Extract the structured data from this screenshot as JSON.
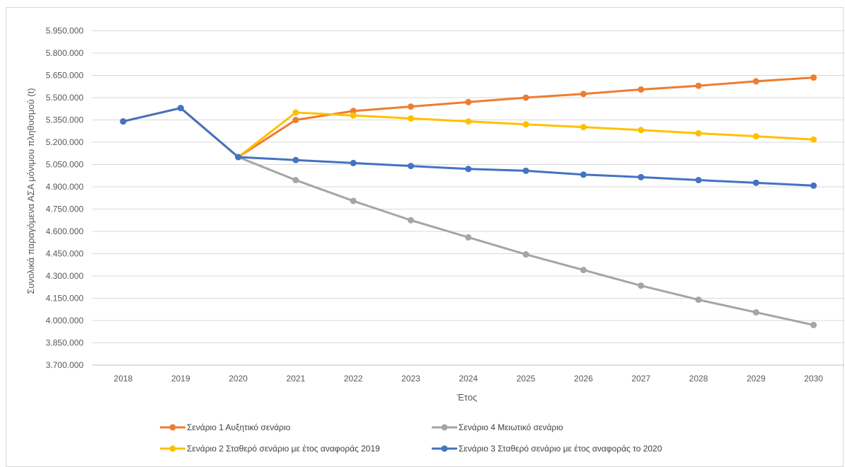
{
  "chart_data": {
    "type": "line",
    "xlabel": "Έτος",
    "ylabel": "Συνολικά παραγόμενα ΑΣΑ μόνιμου πληθυσμού (t)",
    "x": [
      "2018",
      "2019",
      "2020",
      "2021",
      "2022",
      "2023",
      "2024",
      "2025",
      "2026",
      "2027",
      "2028",
      "2029",
      "2030"
    ],
    "ylim": [
      3700000,
      6050000
    ],
    "yticks": [
      3700000,
      3850000,
      4000000,
      4150000,
      4300000,
      4450000,
      4600000,
      4750000,
      4900000,
      5050000,
      5200000,
      5350000,
      5500000,
      5650000,
      5800000,
      5950000
    ],
    "ytick_labels": [
      "3.700.000",
      "3.850.000",
      "4.000.000",
      "4.150.000",
      "4.300.000",
      "4.450.000",
      "4.600.000",
      "4.750.000",
      "4.900.000",
      "5.050.000",
      "5.200.000",
      "5.350.000",
      "5.500.000",
      "5.650.000",
      "5.800.000",
      "5.950.000"
    ],
    "grid": "horizontal",
    "legend_position": "bottom",
    "series": [
      {
        "name": "Σενάριο 1 Αυξητικό σενάριο",
        "color": "#ED7D31",
        "values": [
          5340000,
          5430000,
          5100000,
          5350000,
          5410000,
          5440000,
          5470000,
          5500000,
          5525000,
          5555000,
          5580000,
          5610000,
          5635000
        ]
      },
      {
        "name": "Σενάριο 4 Μειωτικό σενάριο",
        "color": "#A5A5A5",
        "values": [
          5340000,
          5430000,
          5100000,
          4945000,
          4805000,
          4675000,
          4560000,
          4445000,
          4340000,
          4235000,
          4140000,
          4055000,
          3970000
        ]
      },
      {
        "name": "Σενάριο 2 Σταθερό σενάριο  με έτος αναφοράς 2019",
        "color": "#FFC000",
        "values": [
          5340000,
          5430000,
          5100000,
          5400000,
          5380000,
          5360000,
          5340000,
          5320000,
          5302000,
          5282000,
          5260000,
          5240000,
          5218000
        ]
      },
      {
        "name": "Σενάριο 3 Σταθερό σενάριο  με έτος αναφοράς το 2020",
        "color": "#4472C4",
        "values": [
          5340000,
          5430000,
          5100000,
          5080000,
          5060000,
          5040000,
          5020000,
          5008000,
          4982000,
          4965000,
          4945000,
          4927000,
          4908000
        ]
      }
    ]
  }
}
